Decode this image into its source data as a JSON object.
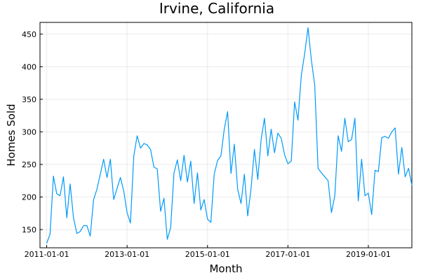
{
  "chart_data": {
    "type": "line",
    "title": "Irvine, California",
    "xlabel": "Month",
    "ylabel": "Homes Sold",
    "x_start": "2011-01-01",
    "x_end": "2019-12-01",
    "xlim": [
      "2010-11-01",
      "2020-02-01"
    ],
    "ylim": [
      122,
      468
    ],
    "x_ticks": [
      "2011-01-01",
      "2013-01-01",
      "2015-01-01",
      "2017-01-01",
      "2019-01-01"
    ],
    "y_ticks": [
      150,
      200,
      250,
      300,
      350,
      400,
      450
    ],
    "grid": true,
    "legend": "none",
    "series_color": "#009AFA",
    "series": [
      {
        "values": [
          129,
          143,
          232,
          205,
          202,
          231,
          168,
          220,
          168,
          144,
          147,
          156,
          156,
          140,
          196,
          212,
          235,
          258,
          230,
          258,
          196,
          213,
          230,
          209,
          176,
          160,
          263,
          294,
          275,
          282,
          280,
          273,
          246,
          243,
          178,
          198,
          135,
          153,
          237,
          257,
          225,
          264,
          223,
          255,
          190,
          237,
          180,
          196,
          166,
          161,
          235,
          256,
          263,
          304,
          331,
          236,
          281,
          212,
          190,
          235,
          171,
          213,
          273,
          227,
          288,
          321,
          263,
          304,
          268,
          298,
          290,
          265,
          251,
          255,
          346,
          318,
          387,
          420,
          460,
          410,
          372,
          244,
          237,
          231,
          225,
          176,
          202,
          294,
          270,
          321,
          285,
          288,
          321,
          194,
          258,
          202,
          206,
          173,
          241,
          239,
          291,
          293,
          290,
          300,
          306,
          235,
          276,
          231,
          244,
          218
        ]
      }
    ]
  }
}
